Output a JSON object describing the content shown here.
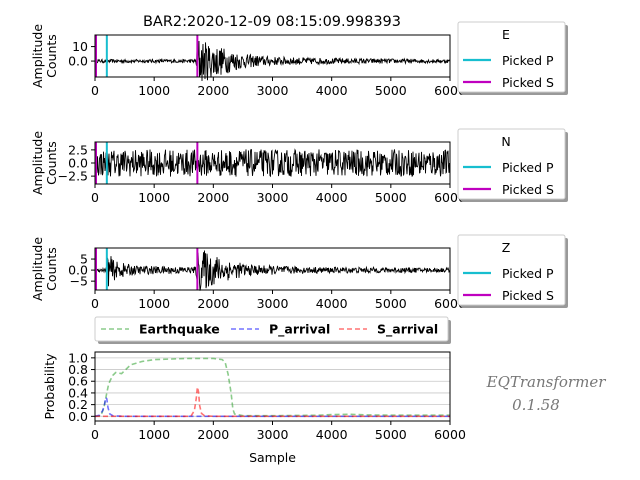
{
  "chart_data": {
    "title": "BAR2:2020-12-09 08:15:09.998393",
    "type": "line",
    "xlim": [
      0,
      6000
    ],
    "x_ticks": [
      0,
      1000,
      2000,
      3000,
      4000,
      5000,
      6000
    ],
    "pick_p": 200,
    "pick_s": 1730,
    "pick_colors": {
      "p": "#17becf",
      "s": "#bf00bf"
    },
    "panels": [
      {
        "component": "E",
        "ylabel": "Amplitude\nCounts",
        "ylim": [
          -11,
          18
        ],
        "y_ticks": [
          0,
          10
        ],
        "legend": [
          "E",
          "Picked P",
          "Picked S"
        ],
        "envelope": [
          [
            0,
            1.2
          ],
          [
            1700,
            1.2
          ],
          [
            1750,
            18
          ],
          [
            1850,
            14
          ],
          [
            2200,
            9
          ],
          [
            2500,
            5
          ],
          [
            3000,
            3
          ],
          [
            4000,
            2
          ],
          [
            6000,
            1.2
          ]
        ]
      },
      {
        "component": "N",
        "ylabel": "Amplitude\nCounts",
        "ylim": [
          -4,
          4
        ],
        "y_ticks": [
          -2.5,
          0.0,
          2.5
        ],
        "legend": [
          "N",
          "Picked P",
          "Picked S"
        ],
        "envelope": [
          [
            0,
            2.6
          ],
          [
            6000,
            2.6
          ]
        ]
      },
      {
        "component": "Z",
        "ylabel": "Amplitude\nCounts",
        "ylim": [
          -9,
          10
        ],
        "y_ticks": [
          -5,
          0,
          5
        ],
        "legend": [
          "Z",
          "Picked P",
          "Picked S"
        ],
        "envelope": [
          [
            0,
            0.8
          ],
          [
            190,
            0.8
          ],
          [
            210,
            8
          ],
          [
            350,
            4
          ],
          [
            700,
            2
          ],
          [
            1700,
            1.5
          ],
          [
            1750,
            10
          ],
          [
            1850,
            9
          ],
          [
            2200,
            5
          ],
          [
            2600,
            2.5
          ],
          [
            3500,
            1.5
          ],
          [
            6000,
            1
          ]
        ]
      }
    ],
    "probability": {
      "ylabel": "Probability",
      "xlabel": "Sample",
      "ylim": [
        -0.08,
        1.1
      ],
      "y_ticks": [
        0.0,
        0.2,
        0.4,
        0.6,
        0.8,
        1.0
      ],
      "grid": "horizontal",
      "legend_placement": "top",
      "series": [
        {
          "name": "Earthquake",
          "color": "#2ca02c",
          "points": [
            [
              0,
              0.0
            ],
            [
              100,
              0.01
            ],
            [
              150,
              0.15
            ],
            [
              190,
              0.35
            ],
            [
              230,
              0.55
            ],
            [
              260,
              0.62
            ],
            [
              300,
              0.7
            ],
            [
              350,
              0.75
            ],
            [
              450,
              0.73
            ],
            [
              500,
              0.78
            ],
            [
              600,
              0.88
            ],
            [
              800,
              0.94
            ],
            [
              1000,
              0.97
            ],
            [
              1300,
              0.98
            ],
            [
              1600,
              0.99
            ],
            [
              2000,
              0.99
            ],
            [
              2150,
              0.97
            ],
            [
              2200,
              0.92
            ],
            [
              2250,
              0.72
            ],
            [
              2300,
              0.4
            ],
            [
              2330,
              0.12
            ],
            [
              2360,
              0.04
            ],
            [
              2500,
              0.01
            ],
            [
              3000,
              0.01
            ],
            [
              3500,
              0.015
            ],
            [
              3800,
              0.02
            ],
            [
              4000,
              0.03
            ],
            [
              4300,
              0.035
            ],
            [
              4600,
              0.025
            ],
            [
              5000,
              0.02
            ],
            [
              6000,
              0.02
            ]
          ]
        },
        {
          "name": "P_arrival",
          "color": "#0000ff",
          "points": [
            [
              0,
              0.0
            ],
            [
              80,
              0.02
            ],
            [
              130,
              0.1
            ],
            [
              160,
              0.2
            ],
            [
              180,
              0.32
            ],
            [
              200,
              0.3
            ],
            [
              220,
              0.15
            ],
            [
              250,
              0.04
            ],
            [
              300,
              0.01
            ],
            [
              500,
              0.0
            ],
            [
              6000,
              0.0
            ]
          ]
        },
        {
          "name": "S_arrival",
          "color": "#ff0000",
          "points": [
            [
              0,
              0.0
            ],
            [
              1620,
              0.0
            ],
            [
              1680,
              0.1
            ],
            [
              1710,
              0.3
            ],
            [
              1730,
              0.5
            ],
            [
              1750,
              0.42
            ],
            [
              1770,
              0.18
            ],
            [
              1800,
              0.05
            ],
            [
              1850,
              0.01
            ],
            [
              2000,
              0.0
            ],
            [
              6000,
              0.0
            ]
          ]
        }
      ]
    }
  },
  "watermark": {
    "line1": "EQTransformer",
    "line2": "0.1.58"
  }
}
